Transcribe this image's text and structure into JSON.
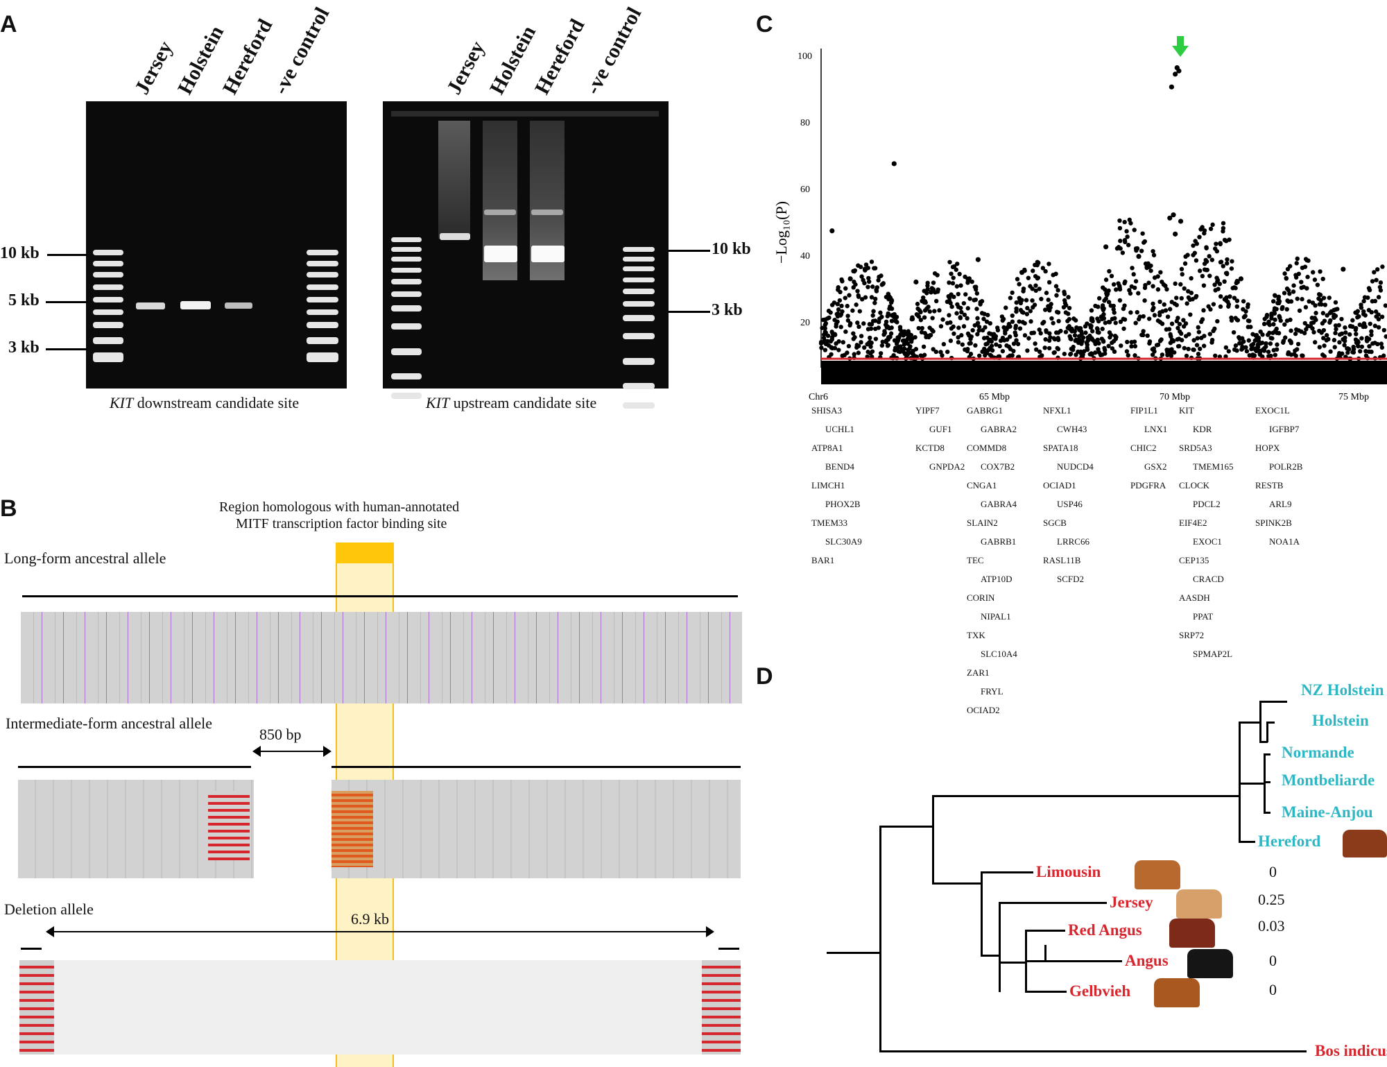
{
  "panels": {
    "A": {
      "letter": "A",
      "left_gel": {
        "lanes": [
          "Jersey",
          "Holstein",
          "Hereford",
          "-ve control"
        ],
        "size_labels": [
          "10 kb",
          "5 kb",
          "3 kb"
        ],
        "caption_italic": "KIT",
        "caption_rest": " downstream candidate site"
      },
      "right_gel": {
        "lanes": [
          "Jersey",
          "Holstein",
          "Hereford",
          "-ve control"
        ],
        "size_labels": [
          "10 kb",
          "3 kb"
        ],
        "caption_italic": "KIT",
        "caption_rest": " upstream candidate site"
      }
    },
    "B": {
      "letter": "B",
      "region_label_1": "Region homologous with human-annotated",
      "region_label_2": "MITF transcription factor binding site",
      "long_form": "Long-form ancestral allele",
      "intermediate_form": "Intermediate-form ancestral allele",
      "gap_label": "850 bp",
      "deletion": "Deletion allele",
      "deletion_size": "6.9 kb"
    },
    "C": {
      "letter": "C",
      "ylabel": "−Log₁₀(P)",
      "yticks": [
        "100",
        "80",
        "60",
        "40",
        "20"
      ],
      "xticks": [
        "Chr6",
        "65 Mbp",
        "70 Mbp",
        "75 Mbp"
      ],
      "genes": [
        "SHISA3",
        "UCHL1",
        "ATP8A1",
        "BEND4",
        "LIMCH1",
        "PHOX2B",
        "TMEM33",
        "SLC30A9",
        "BAR1",
        "YIPF7",
        "GUF1",
        "KCTD8",
        "GNPDA2",
        "GABRG1",
        "GABRA2",
        "COMMD8",
        "COX7B2",
        "CNGA1",
        "GABRA4",
        "SLAIN2",
        "GABRB1",
        "TEC",
        "ATP10D",
        "CORIN",
        "NIPAL1",
        "TXK",
        "SLC10A4",
        "ZAR1",
        "FRYL",
        "OCIAD2",
        "NFXL1",
        "CWH43",
        "SPATA18",
        "NUDCD4",
        "OCIAD1",
        "USP46",
        "SGCB",
        "LRRC66",
        "RASL11B",
        "SCFD2",
        "FIP1L1",
        "LNX1",
        "CHIC2",
        "GSX2",
        "PDGFRA",
        "KIT",
        "KDR",
        "SRD5A3",
        "TMEM165",
        "CLOCK",
        "PDCL2",
        "EIF4E2",
        "EXOC1",
        "CEP135",
        "CRACD",
        "AASDH",
        "PPAT",
        "SRP72",
        "SPMAP2L",
        "EXOC1L",
        "IGFBP7",
        "HOPX",
        "POLR2B",
        "RESTB",
        "ARL9",
        "SPINK2B",
        "NOA1A"
      ],
      "chart_data": {
        "type": "scatter",
        "title": "",
        "xlabel": "",
        "ylabel": "−Log10(P)",
        "xlim": [
          60.5,
          76
        ],
        "ylim": [
          0,
          105
        ],
        "x_ticks": [
          "Chr6",
          "65 Mbp",
          "70 Mbp",
          "75 Mbp"
        ],
        "y_ticks": [
          20,
          40,
          60,
          80,
          100
        ],
        "significance_threshold": 8,
        "threshold_color": "#d8262e",
        "highlight_color": "#2ecc40",
        "points_x": [
          70.2,
          70.25,
          70.3,
          70.1,
          60.8,
          62.5,
          64.8,
          68.3,
          70.05,
          70.15,
          70.35,
          70.2,
          69.2,
          72.0,
          74.8,
          66.0,
          61.3,
          63.1
        ],
        "points_y": [
          97,
          99,
          98,
          93,
          48,
          69,
          39,
          43,
          52,
          53,
          51,
          47,
          40,
          33,
          36,
          35,
          33,
          32
        ]
      }
    },
    "D": {
      "letter": "D",
      "breeds_cyan": [
        "NZ Holstein",
        "Holstein",
        "Normande",
        "Montbeliarde",
        "Maine-Anjou",
        "Hereford"
      ],
      "breeds_red": [
        "Limousin",
        "Jersey",
        "Red Angus",
        "Angus",
        "Gelbvieh"
      ],
      "outgroup": "Bos indicus",
      "frequencies": [
        "0",
        "0.25",
        "0.03",
        "0",
        "0"
      ],
      "cyan_color": "#2bb8c4",
      "red_color": "#d8262e"
    }
  }
}
